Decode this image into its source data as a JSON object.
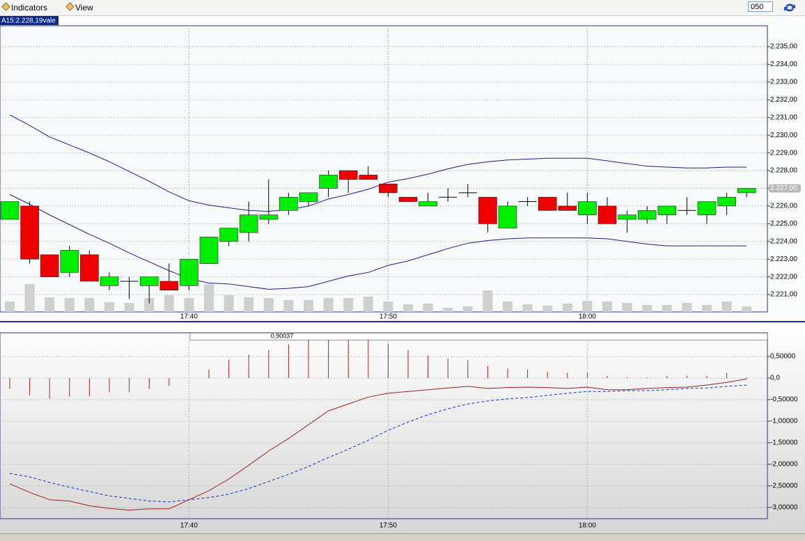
{
  "toolbar": {
    "menus": [
      "Indicators",
      "View"
    ],
    "input": "050"
  },
  "chart_data": [
    {
      "type": "candlestick",
      "title": "A15:2.228,19vale",
      "categories": [
        null,
        null,
        null,
        null,
        null,
        null,
        null,
        null,
        null,
        "17:40",
        null,
        null,
        null,
        null,
        null,
        null,
        null,
        null,
        null,
        "17:50",
        null,
        null,
        null,
        null,
        null,
        null,
        null,
        null,
        null,
        "18:00",
        null,
        null,
        null,
        null,
        null,
        null,
        null,
        null
      ],
      "open": [
        2225.25,
        2226,
        2223.25,
        2222.25,
        2223.25,
        2221.5,
        2221.75,
        2221.5,
        2221.75,
        2221.5,
        2222.75,
        2224,
        2224.5,
        2225.25,
        2225.75,
        2226.25,
        2227,
        2228,
        2227.75,
        2227.25,
        2226.5,
        2226,
        2226.5,
        2226.75,
        2226.5,
        2224.75,
        2226.25,
        2226.5,
        2226,
        2225.5,
        2226,
        2225.25,
        2225.25,
        2225.5,
        2225.75,
        2225.5,
        2226,
        2226.75
      ],
      "high": [
        2226.25,
        2226.25,
        2223.25,
        2223.75,
        2223.5,
        2222.25,
        2222,
        2222,
        2222.75,
        2223,
        2224.25,
        2224.75,
        2226.25,
        2227.5,
        2226.75,
        2226.75,
        2228,
        2228,
        2228.25,
        2227.25,
        2226.5,
        2226.75,
        2227,
        2227.25,
        2226.5,
        2226.25,
        2226.5,
        2226.5,
        2226.75,
        2226.75,
        2226.5,
        2225.75,
        2226,
        2226,
        2226.5,
        2226.25,
        2226.75,
        2227
      ],
      "low": [
        2225.25,
        2222.75,
        2222,
        2222,
        2221.75,
        2221.25,
        2220.75,
        2220.5,
        2221.25,
        2221.25,
        2222.75,
        2223.75,
        2224,
        2225,
        2225.5,
        2226,
        2226.5,
        2226.75,
        2227.5,
        2226.5,
        2226.25,
        2226,
        2226.25,
        2226.5,
        2224.5,
        2224.75,
        2226,
        2225.75,
        2225.75,
        2225,
        2225,
        2224.5,
        2225,
        2225,
        2225.5,
        2225,
        2225.5,
        2226.5
      ],
      "close": [
        2226.25,
        2223,
        2222,
        2223.5,
        2221.75,
        2222,
        2221.75,
        2222,
        2221.25,
        2223,
        2224.25,
        2224.75,
        2225.5,
        2225.5,
        2226.5,
        2226.75,
        2227.75,
        2227.5,
        2227.5,
        2226.75,
        2226.25,
        2226.25,
        2226.5,
        2226.75,
        2225,
        2226,
        2226.25,
        2225.75,
        2225.75,
        2226.25,
        2225,
        2225.5,
        2225.75,
        2226,
        2225.75,
        2226.25,
        2226.5,
        2227
      ],
      "volume": [
        15,
        40,
        21,
        20,
        20,
        14,
        13,
        20,
        24,
        20,
        40,
        24,
        21,
        20,
        17,
        17,
        20,
        20,
        22,
        15,
        11,
        12,
        6,
        8,
        31,
        15,
        11,
        9,
        12,
        16,
        15,
        13,
        10,
        10,
        13,
        10,
        15,
        8
      ],
      "up_color": "#00ee00",
      "down_color": "#ee0000",
      "volume_color": "#cfcfcf",
      "series": [
        {
          "color": "#1a1a9a",
          "values": [
            2231.15,
            2230.55,
            2229.9,
            2229.45,
            2229.0,
            2228.5,
            2227.95,
            2227.4,
            2226.8,
            2226.3,
            2226.05,
            2225.9,
            2225.75,
            2225.7,
            2225.8,
            2226.0,
            2226.4,
            2226.65,
            2226.95,
            2227.35,
            2227.55,
            2227.8,
            2228.1,
            2228.35,
            2228.5,
            2228.6,
            2228.65,
            2228.7,
            2228.7,
            2228.7,
            2228.55,
            2228.4,
            2228.25,
            2228.2,
            2228.15,
            2228.15,
            2228.2,
            2228.2
          ]
        },
        {
          "color": "#1a1a9a",
          "values": [
            2226.65,
            2226.1,
            2225.5,
            2224.95,
            2224.4,
            2223.9,
            2223.35,
            2222.85,
            2222.35,
            2221.9,
            2221.65,
            2221.6,
            2221.45,
            2221.3,
            2221.35,
            2221.45,
            2221.75,
            2222.05,
            2222.25,
            2222.65,
            2222.9,
            2223.25,
            2223.6,
            2223.9,
            2224.05,
            2224.15,
            2224.2,
            2224.2,
            2224.2,
            2224.2,
            2224.15,
            2224.0,
            2223.85,
            2223.75,
            2223.75,
            2223.75,
            2223.75,
            2223.75
          ]
        }
      ],
      "current": {
        "value": 2227,
        "label": "2.227,00"
      },
      "ylim": [
        2220.02,
        2236.18
      ],
      "yticks": [
        {
          "value": 2221,
          "label": "2.221,00"
        },
        {
          "value": 2222,
          "label": "2.222,00"
        },
        {
          "value": 2223,
          "label": "2.223,00"
        },
        {
          "value": 2224,
          "label": "2.224,00"
        },
        {
          "value": 2225,
          "label": "2.225,00"
        },
        {
          "value": 2226,
          "label": "2.226,00"
        },
        {
          "value": 2227,
          "label": "2.227,00"
        },
        {
          "value": 2228,
          "label": "2.228,00"
        },
        {
          "value": 2229,
          "label": "2.229,00"
        },
        {
          "value": 2230,
          "label": "2.230,00"
        },
        {
          "value": 2231,
          "label": "2.231,00"
        },
        {
          "value": 2232,
          "label": "2.232,00"
        },
        {
          "value": 2233,
          "label": "2.233,00"
        },
        {
          "value": 2234,
          "label": "2.234,00"
        },
        {
          "value": 2235,
          "label": "2.235,00"
        }
      ],
      "grid": true
    },
    {
      "type": "macd",
      "categories": [
        null,
        null,
        null,
        null,
        null,
        null,
        null,
        null,
        null,
        "17:40",
        null,
        null,
        null,
        null,
        null,
        null,
        null,
        null,
        null,
        "17:50",
        null,
        null,
        null,
        null,
        null,
        null,
        null,
        null,
        null,
        "18:00",
        null,
        null,
        null,
        null,
        null,
        null,
        null,
        null
      ],
      "histogram": {
        "color": "#b02020",
        "values": [
          -0.25,
          -0.4,
          -0.48,
          -0.43,
          -0.42,
          -0.33,
          -0.33,
          -0.25,
          -0.18,
          0,
          0.2,
          0.42,
          0.55,
          0.65,
          0.78,
          0.88,
          0.9,
          0.9,
          0.9,
          0.8,
          0.65,
          0.52,
          0.45,
          0.42,
          0.28,
          0.22,
          0.2,
          0.15,
          0.12,
          0.12,
          0.05,
          0.02,
          0.02,
          0.05,
          0.05,
          0.05,
          0.12,
          0.02
        ]
      },
      "series": [
        {
          "color": "#a02020",
          "dashed": false,
          "values": [
            -2.45,
            -2.65,
            -2.82,
            -2.85,
            -2.96,
            -3.02,
            -3.06,
            -3.03,
            -3.03,
            -2.82,
            -2.61,
            -2.34,
            -2.02,
            -1.69,
            -1.4,
            -1.08,
            -0.76,
            -0.6,
            -0.44,
            -0.35,
            -0.31,
            -0.27,
            -0.23,
            -0.19,
            -0.24,
            -0.22,
            -0.21,
            -0.22,
            -0.24,
            -0.21,
            -0.27,
            -0.27,
            -0.24,
            -0.22,
            -0.21,
            -0.16,
            -0.1,
            -0.02
          ]
        },
        {
          "color": "#1030d0",
          "dashed": true,
          "values": [
            -2.21,
            -2.29,
            -2.42,
            -2.53,
            -2.63,
            -2.73,
            -2.79,
            -2.85,
            -2.87,
            -2.82,
            -2.77,
            -2.69,
            -2.56,
            -2.4,
            -2.23,
            -2.05,
            -1.84,
            -1.65,
            -1.44,
            -1.21,
            -1.02,
            -0.85,
            -0.71,
            -0.6,
            -0.53,
            -0.48,
            -0.45,
            -0.4,
            -0.35,
            -0.31,
            -0.31,
            -0.29,
            -0.29,
            -0.27,
            -0.24,
            -0.23,
            -0.19,
            -0.16
          ]
        }
      ],
      "annotation": {
        "value": 0.90037,
        "label": "0,90037"
      },
      "ylim": [
        -3.26,
        1.05
      ],
      "yticks": [
        {
          "value": 0.5,
          "label": "0,50000"
        },
        {
          "value": 0,
          "label": "0,0"
        },
        {
          "value": -0.5,
          "label": "-0,50000"
        },
        {
          "value": -1,
          "label": "-1,00000"
        },
        {
          "value": -1.5,
          "label": "-1,50000"
        },
        {
          "value": -2,
          "label": "-2,00000"
        },
        {
          "value": -2.5,
          "label": "-2,50000"
        },
        {
          "value": -3,
          "label": "-3,00000"
        }
      ],
      "grid": true
    }
  ]
}
